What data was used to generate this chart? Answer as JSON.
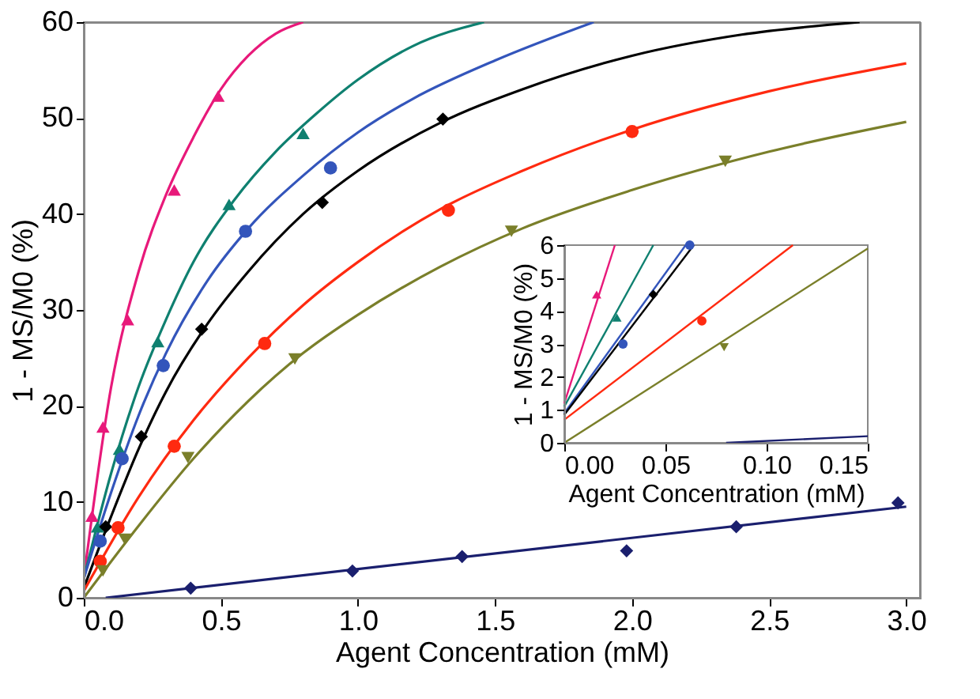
{
  "chart_data": [
    {
      "type": "scatter",
      "xlabel": "Agent Concentration (mM)",
      "ylabel": "1 - MS/M0 (%)",
      "xlim": [
        0,
        3.05
      ],
      "ylim": [
        0,
        60
      ],
      "xticks": [
        {
          "value": 0,
          "label": "0.0"
        },
        {
          "value": 0.5,
          "label": "0.5"
        },
        {
          "value": 1,
          "label": "1.0"
        },
        {
          "value": 1.5,
          "label": "1.5"
        },
        {
          "value": 2,
          "label": "2.0"
        },
        {
          "value": 2.5,
          "label": "2.5"
        },
        {
          "value": 3,
          "label": "3.0"
        }
      ],
      "yticks": [
        0,
        10,
        20,
        30,
        40,
        50,
        60
      ],
      "grid": false,
      "series": [
        {
          "type": "line",
          "color": "#e8197a",
          "x": [
            0,
            0.1,
            0.2,
            0.3,
            0.4,
            0.5,
            0.6,
            0.7,
            0.8
          ],
          "values": [
            2,
            22,
            34,
            42,
            48,
            53,
            56.5,
            58.8,
            60
          ]
        },
        {
          "type": "line",
          "color": "#0f8070",
          "x": [
            0,
            0.1,
            0.2,
            0.3,
            0.4,
            0.55,
            0.7,
            0.85,
            1.0,
            1.2,
            1.46
          ],
          "values": [
            2,
            13,
            22,
            29,
            35,
            41.5,
            46.5,
            50.5,
            54,
            57.5,
            60
          ]
        },
        {
          "type": "line",
          "color": "#3355bb",
          "x": [
            0,
            0.1,
            0.2,
            0.3,
            0.45,
            0.6,
            0.8,
            1.0,
            1.2,
            1.5,
            1.86
          ],
          "values": [
            2,
            11,
            19,
            25.5,
            33,
            38.5,
            44,
            48.5,
            52,
            56,
            60
          ]
        },
        {
          "type": "line",
          "color": "#000000",
          "x": [
            0,
            0.1,
            0.2,
            0.3,
            0.45,
            0.6,
            0.8,
            1.0,
            1.3,
            1.6,
            2.0,
            2.4,
            2.83
          ],
          "values": [
            1,
            8.5,
            15.5,
            21.5,
            28.5,
            34,
            40,
            44.5,
            49.5,
            53,
            56.5,
            58.7,
            60
          ]
        },
        {
          "type": "line",
          "color": "#ff2a10",
          "x": [
            0,
            0.2,
            0.4,
            0.6,
            0.8,
            1.0,
            1.3,
            1.6,
            2.0,
            2.5,
            3.0
          ],
          "values": [
            0.7,
            10.5,
            18.5,
            25,
            30.5,
            35,
            40.5,
            44.5,
            48.8,
            52.8,
            55.7
          ]
        },
        {
          "type": "line",
          "color": "#7a7f2a",
          "x": [
            0,
            0.2,
            0.4,
            0.6,
            0.8,
            1.0,
            1.3,
            1.6,
            2.0,
            2.5,
            3.0
          ],
          "values": [
            0,
            7.5,
            14.5,
            20.5,
            25.5,
            29.5,
            34.5,
            38.5,
            42.5,
            46.5,
            49.6
          ]
        },
        {
          "type": "line",
          "color": "#1a1f6e",
          "x": [
            0.08,
            3.0
          ],
          "values": [
            0,
            9.5
          ]
        },
        {
          "color": "#e8197a",
          "marker": "triangle",
          "x": [
            0.03,
            0.07,
            0.16,
            0.33,
            0.49
          ],
          "values": [
            8.5,
            17.8,
            29,
            42.5,
            52.3
          ]
        },
        {
          "color": "#0f8070",
          "marker": "triangle",
          "x": [
            0.05,
            0.13,
            0.27,
            0.53,
            0.8
          ],
          "values": [
            7.4,
            15.5,
            26.7,
            41,
            48.4
          ]
        },
        {
          "color": "#3355bb",
          "marker": "circle",
          "x": [
            0.06,
            0.14,
            0.29,
            0.59,
            0.9
          ],
          "values": [
            5.9,
            14.5,
            24.2,
            38.2,
            44.8
          ]
        },
        {
          "color": "#000000",
          "marker": "diamond",
          "x": [
            0.08,
            0.21,
            0.43,
            0.87,
            1.31
          ],
          "values": [
            7.4,
            16.8,
            28,
            41.2,
            49.9
          ]
        },
        {
          "color": "#ff2a10",
          "marker": "circle",
          "x": [
            0.06,
            0.125,
            0.33,
            0.66,
            1.33,
            2.0
          ],
          "values": [
            3.8,
            7.3,
            15.8,
            26.5,
            40.4,
            48.6
          ]
        },
        {
          "color": "#7a7f2a",
          "marker": "triangle-down",
          "x": [
            0.07,
            0.15,
            0.38,
            0.77,
            1.56,
            2.34
          ],
          "values": [
            2.8,
            6.1,
            14.6,
            24.9,
            38.2,
            45.5
          ]
        },
        {
          "color": "#1a1f6e",
          "marker": "diamond",
          "x": [
            0.39,
            0.98,
            1.38,
            1.98,
            2.38,
            2.97
          ],
          "values": [
            1.0,
            2.8,
            4.3,
            4.9,
            7.4,
            9.9
          ]
        }
      ]
    },
    {
      "type": "scatter",
      "xlabel": "Agent Concentration (mM)",
      "ylabel": "1 - MS/M0 (%)",
      "xlim": [
        0,
        0.15
      ],
      "ylim": [
        0,
        6
      ],
      "xticks": [
        {
          "value": 0,
          "label": "0.00"
        },
        {
          "value": 0.05,
          "label": "0.05"
        },
        {
          "value": 0.1,
          "label": "0.10"
        },
        {
          "value": 0.15,
          "label": "0.15"
        }
      ],
      "yticks": [
        0,
        1,
        2,
        3,
        4,
        5,
        6
      ],
      "grid": false,
      "series": [
        {
          "type": "line",
          "color": "#e8197a",
          "x": [
            0,
            0.025
          ],
          "values": [
            1.2,
            6
          ]
        },
        {
          "type": "line",
          "color": "#0f8070",
          "x": [
            0,
            0.044
          ],
          "values": [
            1.1,
            6
          ]
        },
        {
          "type": "line",
          "color": "#3355bb",
          "x": [
            0,
            0.06
          ],
          "values": [
            0.9,
            6
          ]
        },
        {
          "type": "line",
          "color": "#000000",
          "x": [
            0,
            0.064
          ],
          "values": [
            0.85,
            6
          ]
        },
        {
          "type": "line",
          "color": "#ff2a10",
          "x": [
            0,
            0.113
          ],
          "values": [
            0.7,
            6
          ]
        },
        {
          "type": "line",
          "color": "#7a7f2a",
          "x": [
            0,
            0.15
          ],
          "values": [
            0,
            5.9
          ]
        },
        {
          "type": "line",
          "color": "#1a1f6e",
          "x": [
            0.08,
            0.15
          ],
          "values": [
            0,
            0.2
          ]
        },
        {
          "color": "#e8197a",
          "marker": "triangle",
          "x": [
            0.016
          ],
          "values": [
            4.5
          ]
        },
        {
          "color": "#0f8070",
          "marker": "triangle",
          "x": [
            0.026
          ],
          "values": [
            3.8
          ]
        },
        {
          "color": "#3355bb",
          "marker": "circle",
          "x": [
            0.029,
            0.062
          ],
          "values": [
            3.0,
            6.0
          ]
        },
        {
          "color": "#000000",
          "marker": "diamond",
          "x": [
            0.044
          ],
          "values": [
            4.5
          ]
        },
        {
          "color": "#ff2a10",
          "marker": "circle",
          "x": [
            0.068
          ],
          "values": [
            3.7
          ]
        },
        {
          "color": "#7a7f2a",
          "marker": "triangle-down",
          "x": [
            0.079
          ],
          "values": [
            2.9
          ]
        }
      ]
    }
  ]
}
